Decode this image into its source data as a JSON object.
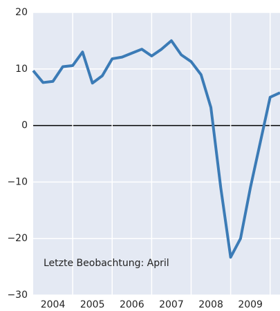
{
  "chart_data": {
    "type": "line",
    "annotation": "Letzte Beobachtung: April",
    "x": [
      2004,
      2004.25,
      2004.5,
      2004.75,
      2005,
      2005.25,
      2005.5,
      2005.75,
      2006,
      2006.25,
      2006.5,
      2006.75,
      2007,
      2007.25,
      2007.5,
      2007.75,
      2008,
      2008.25,
      2008.5,
      2008.75,
      2009,
      2009.25,
      2009.5,
      2009.75,
      2010,
      2010.25
    ],
    "series": [
      {
        "color": "#3b7bb6",
        "values": [
          9.7,
          7.6,
          7.8,
          10.4,
          10.6,
          13.0,
          7.5,
          8.8,
          11.8,
          12.1,
          12.8,
          13.5,
          12.3,
          13.5,
          15.0,
          12.5,
          11.3,
          9.0,
          3.2,
          -11,
          -23.3,
          -20,
          -11,
          -3,
          5.0,
          5.8
        ]
      }
    ],
    "xlim": [
      2004,
      2010.25
    ],
    "xticks": [
      {
        "value": 2004.5,
        "label": "2004"
      },
      {
        "value": 2005.5,
        "label": "2005"
      },
      {
        "value": 2006.5,
        "label": "2006"
      },
      {
        "value": 2007.5,
        "label": "2007"
      },
      {
        "value": 2008.5,
        "label": "2008"
      },
      {
        "value": 2009.5,
        "label": "2009"
      }
    ],
    "xgrid": [
      2005,
      2006,
      2007,
      2008,
      2009,
      2010
    ],
    "ylim": [
      -30,
      20
    ],
    "yticks": [
      {
        "value": -30,
        "label": "−30"
      },
      {
        "value": -20,
        "label": "−20"
      },
      {
        "value": -10,
        "label": "−10"
      },
      0,
      10,
      20
    ],
    "grid": true,
    "background": "#e4e9f3"
  }
}
